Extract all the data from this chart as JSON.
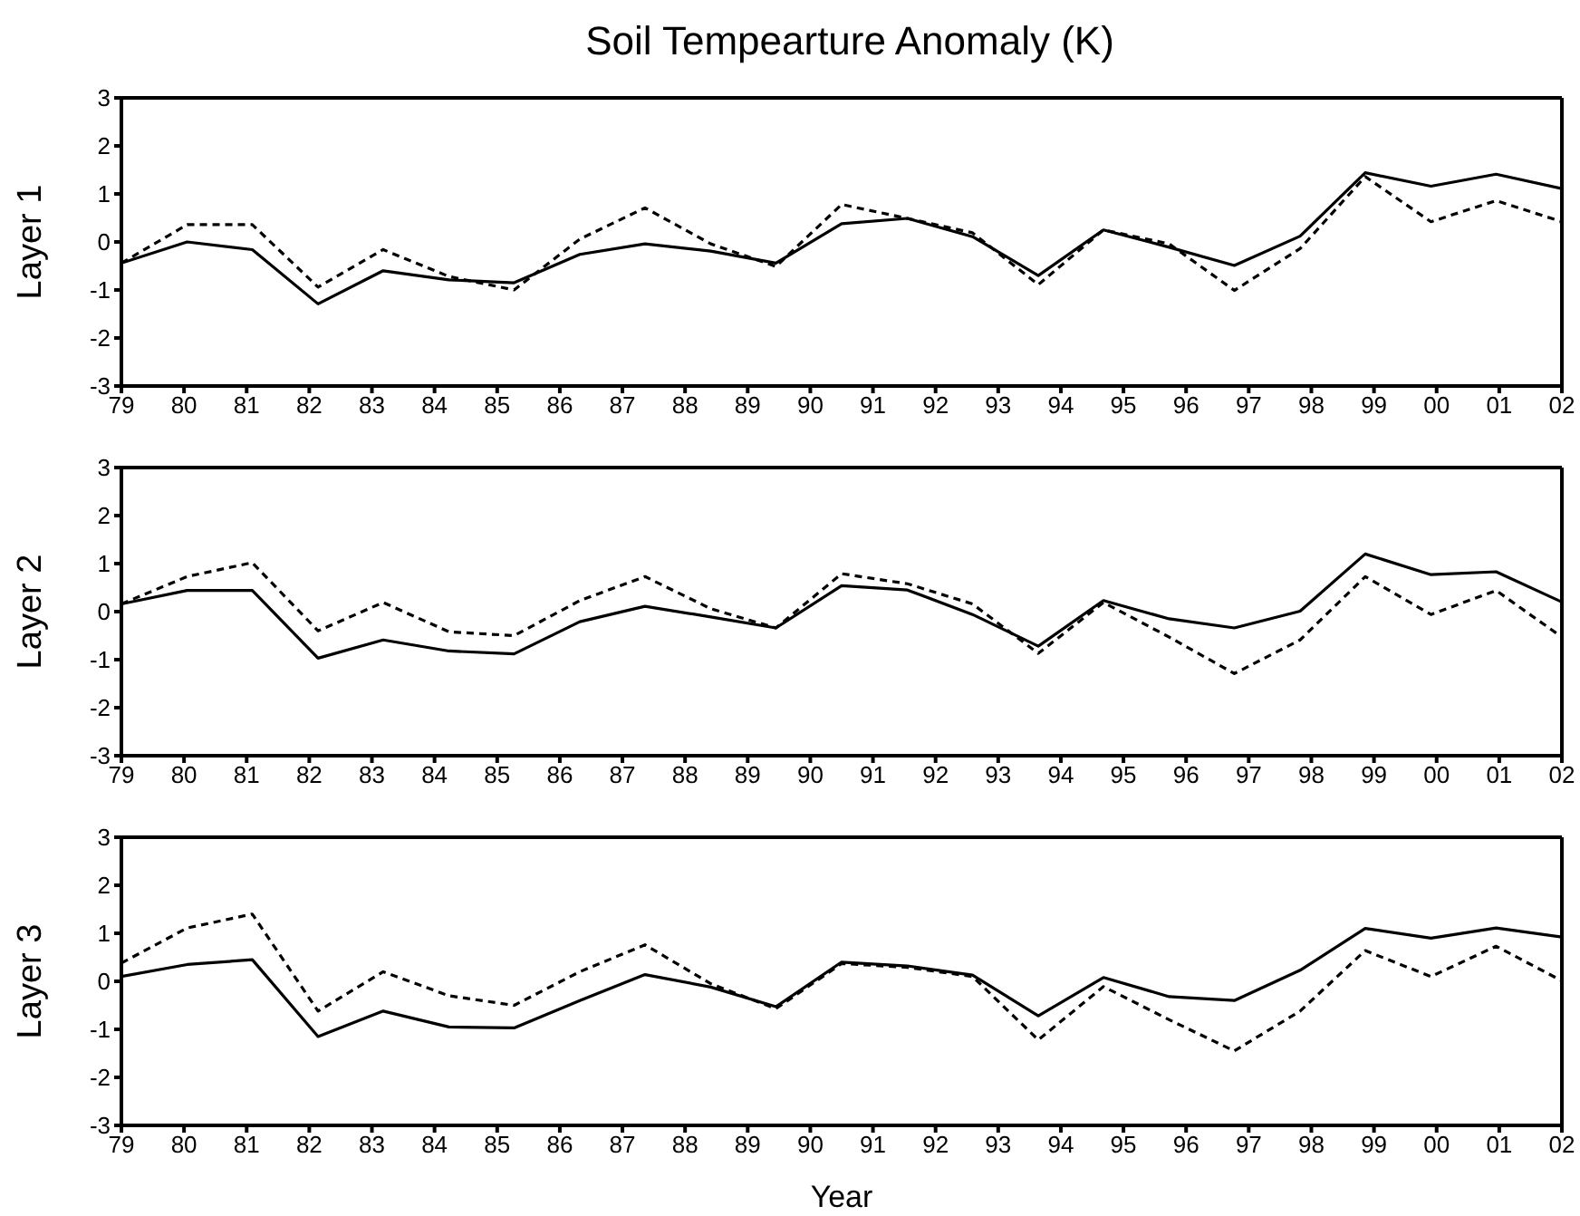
{
  "chart_data": [
    {
      "type": "line",
      "title": "Soil Tempearture Anomaly (K)",
      "ylabel": "Layer 1",
      "x": [
        1979,
        1980.05,
        1981.09,
        1982.14,
        1983.18,
        1984.23,
        1985.27,
        1986.32,
        1987.36,
        1988.41,
        1989.45,
        1990.5,
        1991.55,
        1992.59,
        1993.64,
        1994.68,
        1995.73,
        1996.77,
        1997.82,
        1998.86,
        1999.91,
        2000.95,
        2002
      ],
      "series": [
        {
          "color": "#000000",
          "line_style": "solid",
          "values": [
            -0.44,
            0.0,
            -0.16,
            -1.29,
            -0.6,
            -0.79,
            -0.85,
            -0.26,
            -0.04,
            -0.19,
            -0.44,
            0.38,
            0.49,
            0.11,
            -0.7,
            0.25,
            -0.11,
            -0.49,
            0.12,
            1.44,
            1.16,
            1.41,
            1.11
          ]
        },
        {
          "color": "#000000",
          "line_style": "dashed",
          "values": [
            -0.44,
            0.36,
            0.36,
            -0.94,
            -0.16,
            -0.72,
            -1.0,
            0.06,
            0.71,
            -0.04,
            -0.51,
            0.78,
            0.49,
            0.19,
            -0.89,
            0.25,
            -0.04,
            -1.01,
            -0.14,
            1.36,
            0.42,
            0.86,
            0.42
          ]
        }
      ],
      "xlim": [
        1979,
        2002
      ],
      "ylim": [
        -3,
        3
      ],
      "yticks": [
        -3,
        -2,
        -1,
        0,
        1,
        2,
        3
      ],
      "xticks": [
        {
          "value": 1979,
          "label": "79"
        },
        {
          "value": 1980,
          "label": "80"
        },
        {
          "value": 1981,
          "label": "81"
        },
        {
          "value": 1982,
          "label": "82"
        },
        {
          "value": 1983,
          "label": "83"
        },
        {
          "value": 1984,
          "label": "84"
        },
        {
          "value": 1985,
          "label": "85"
        },
        {
          "value": 1986,
          "label": "86"
        },
        {
          "value": 1987,
          "label": "87"
        },
        {
          "value": 1988,
          "label": "88"
        },
        {
          "value": 1989,
          "label": "89"
        },
        {
          "value": 1990,
          "label": "90"
        },
        {
          "value": 1991,
          "label": "91"
        },
        {
          "value": 1992,
          "label": "92"
        },
        {
          "value": 1993,
          "label": "93"
        },
        {
          "value": 1994,
          "label": "94"
        },
        {
          "value": 1995,
          "label": "95"
        },
        {
          "value": 1996,
          "label": "96"
        },
        {
          "value": 1997,
          "label": "97"
        },
        {
          "value": 1998,
          "label": "98"
        },
        {
          "value": 1999,
          "label": "99"
        },
        {
          "value": 2000,
          "label": "00"
        },
        {
          "value": 2001,
          "label": "01"
        },
        {
          "value": 2002,
          "label": "02"
        }
      ],
      "grid": false,
      "marker": "none"
    },
    {
      "type": "line",
      "ylabel": "Layer 2",
      "x": [
        1979,
        1980.05,
        1981.09,
        1982.14,
        1983.18,
        1984.23,
        1985.27,
        1986.32,
        1987.36,
        1988.41,
        1989.45,
        1990.5,
        1991.55,
        1992.59,
        1993.64,
        1994.68,
        1995.73,
        1996.77,
        1997.82,
        1998.86,
        1999.91,
        2000.95,
        2002
      ],
      "series": [
        {
          "color": "#000000",
          "line_style": "solid",
          "values": [
            0.16,
            0.44,
            0.44,
            -0.97,
            -0.59,
            -0.82,
            -0.88,
            -0.21,
            0.11,
            -0.11,
            -0.34,
            0.54,
            0.45,
            -0.06,
            -0.72,
            0.23,
            -0.15,
            -0.34,
            0.01,
            1.2,
            0.77,
            0.83,
            0.2
          ]
        },
        {
          "color": "#000000",
          "line_style": "dashed",
          "values": [
            0.16,
            0.73,
            1.02,
            -0.4,
            0.19,
            -0.42,
            -0.5,
            0.23,
            0.73,
            0.06,
            -0.34,
            0.79,
            0.58,
            0.16,
            -0.87,
            0.19,
            -0.53,
            -1.29,
            -0.59,
            0.73,
            -0.06,
            0.44,
            -0.53
          ]
        }
      ],
      "xlim": [
        1979,
        2002
      ],
      "ylim": [
        -3,
        3
      ],
      "yticks": [
        -3,
        -2,
        -1,
        0,
        1,
        2,
        3
      ],
      "xticks": [
        {
          "value": 1979,
          "label": "79"
        },
        {
          "value": 1980,
          "label": "80"
        },
        {
          "value": 1981,
          "label": "81"
        },
        {
          "value": 1982,
          "label": "82"
        },
        {
          "value": 1983,
          "label": "83"
        },
        {
          "value": 1984,
          "label": "84"
        },
        {
          "value": 1985,
          "label": "85"
        },
        {
          "value": 1986,
          "label": "86"
        },
        {
          "value": 1987,
          "label": "87"
        },
        {
          "value": 1988,
          "label": "88"
        },
        {
          "value": 1989,
          "label": "89"
        },
        {
          "value": 1990,
          "label": "90"
        },
        {
          "value": 1991,
          "label": "91"
        },
        {
          "value": 1992,
          "label": "92"
        },
        {
          "value": 1993,
          "label": "93"
        },
        {
          "value": 1994,
          "label": "94"
        },
        {
          "value": 1995,
          "label": "95"
        },
        {
          "value": 1996,
          "label": "96"
        },
        {
          "value": 1997,
          "label": "97"
        },
        {
          "value": 1998,
          "label": "98"
        },
        {
          "value": 1999,
          "label": "99"
        },
        {
          "value": 2000,
          "label": "00"
        },
        {
          "value": 2001,
          "label": "01"
        },
        {
          "value": 2002,
          "label": "02"
        }
      ],
      "grid": false,
      "marker": "none"
    },
    {
      "type": "line",
      "ylabel": "Layer 3",
      "xlabel": "Year",
      "x": [
        1979,
        1980.05,
        1981.09,
        1982.14,
        1983.18,
        1984.23,
        1985.27,
        1986.32,
        1987.36,
        1988.41,
        1989.45,
        1990.5,
        1991.55,
        1992.59,
        1993.64,
        1994.68,
        1995.73,
        1996.77,
        1997.82,
        1998.86,
        1999.91,
        2000.95,
        2002
      ],
      "series": [
        {
          "color": "#000000",
          "line_style": "solid",
          "values": [
            0.1,
            0.35,
            0.45,
            -1.15,
            -0.62,
            -0.95,
            -0.97,
            -0.4,
            0.14,
            -0.12,
            -0.53,
            0.4,
            0.32,
            0.13,
            -0.72,
            0.08,
            -0.32,
            -0.4,
            0.23,
            1.1,
            0.9,
            1.11,
            0.92
          ]
        },
        {
          "color": "#000000",
          "line_style": "dashed",
          "values": [
            0.38,
            1.11,
            1.4,
            -0.62,
            0.2,
            -0.3,
            -0.5,
            0.2,
            0.76,
            -0.05,
            -0.57,
            0.37,
            0.29,
            0.1,
            -1.22,
            -0.11,
            -0.8,
            -1.45,
            -0.62,
            0.64,
            0.1,
            0.73,
            0.01
          ]
        }
      ],
      "xlim": [
        1979,
        2002
      ],
      "ylim": [
        -3,
        3
      ],
      "yticks": [
        -3,
        -2,
        -1,
        0,
        1,
        2,
        3
      ],
      "xticks": [
        {
          "value": 1979,
          "label": "79"
        },
        {
          "value": 1980,
          "label": "80"
        },
        {
          "value": 1981,
          "label": "81"
        },
        {
          "value": 1982,
          "label": "82"
        },
        {
          "value": 1983,
          "label": "83"
        },
        {
          "value": 1984,
          "label": "84"
        },
        {
          "value": 1985,
          "label": "85"
        },
        {
          "value": 1986,
          "label": "86"
        },
        {
          "value": 1987,
          "label": "87"
        },
        {
          "value": 1988,
          "label": "88"
        },
        {
          "value": 1989,
          "label": "89"
        },
        {
          "value": 1990,
          "label": "90"
        },
        {
          "value": 1991,
          "label": "91"
        },
        {
          "value": 1992,
          "label": "92"
        },
        {
          "value": 1993,
          "label": "93"
        },
        {
          "value": 1994,
          "label": "94"
        },
        {
          "value": 1995,
          "label": "95"
        },
        {
          "value": 1996,
          "label": "96"
        },
        {
          "value": 1997,
          "label": "97"
        },
        {
          "value": 1998,
          "label": "98"
        },
        {
          "value": 1999,
          "label": "99"
        },
        {
          "value": 2000,
          "label": "00"
        },
        {
          "value": 2001,
          "label": "01"
        },
        {
          "value": 2002,
          "label": "02"
        }
      ],
      "grid": false,
      "marker": "none"
    }
  ]
}
